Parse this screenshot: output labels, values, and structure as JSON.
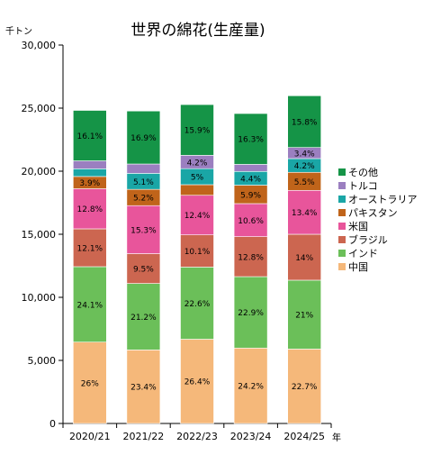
{
  "chart_data": {
    "type": "bar",
    "stacked": true,
    "title": "世界の綿花(生産量)",
    "y_unit": "千トン",
    "x_unit": "年",
    "ylim": [
      0,
      30000
    ],
    "yticks": [
      0,
      5000,
      10000,
      15000,
      20000,
      25000,
      30000
    ],
    "ytick_labels": [
      "0",
      "5,000",
      "10,000",
      "15,000",
      "20,000",
      "25,000",
      "30,000"
    ],
    "grid": false,
    "legend_position": "right",
    "categories": [
      "2020/21",
      "2021/22",
      "2022/23",
      "2023/24",
      "2024/25"
    ],
    "series": [
      {
        "name": "中国",
        "color": "#F5B87A",
        "values": [
          6450,
          5830,
          6680,
          5980,
          5900
        ],
        "labels": [
          "26%",
          "23.4%",
          "26.4%",
          "24.2%",
          "22.7%"
        ]
      },
      {
        "name": "インド",
        "color": "#6BBF59",
        "values": [
          5980,
          5270,
          5720,
          5660,
          5460
        ],
        "labels": [
          "24.1%",
          "21.2%",
          "22.6%",
          "22.9%",
          "21%"
        ]
      },
      {
        "name": "ブラジル",
        "color": "#CC6650",
        "values": [
          3000,
          2360,
          2550,
          3170,
          3640
        ],
        "labels": [
          "12.1%",
          "9.5%",
          "10.1%",
          "12.8%",
          "14%"
        ]
      },
      {
        "name": "米国",
        "color": "#E8559B",
        "values": [
          3180,
          3810,
          3140,
          2620,
          3480
        ],
        "labels": [
          "12.8%",
          "15.3%",
          "12.4%",
          "10.6%",
          "13.4%"
        ]
      },
      {
        "name": "パキスタン",
        "color": "#C0641A",
        "values": [
          970,
          1290,
          840,
          1460,
          1430
        ],
        "labels": [
          "3.9%",
          "5.2%",
          "",
          "5.9%",
          "5.5%"
        ]
      },
      {
        "name": "オーストラリア",
        "color": "#1AA6A6",
        "values": [
          610,
          1270,
          1270,
          1090,
          1090
        ],
        "labels": [
          "",
          "5.1%",
          "5%",
          "4.4%",
          "4.2%"
        ]
      },
      {
        "name": "トルコ",
        "color": "#9B7FC0",
        "values": [
          630,
          740,
          1060,
          560,
          880
        ],
        "labels": [
          "",
          "",
          "4.2%",
          "",
          "3.4%"
        ]
      },
      {
        "name": "その他",
        "color": "#159447",
        "values": [
          4000,
          4200,
          4020,
          4030,
          4100
        ],
        "labels": [
          "16.1%",
          "16.9%",
          "15.9%",
          "16.3%",
          "15.8%"
        ]
      }
    ]
  }
}
